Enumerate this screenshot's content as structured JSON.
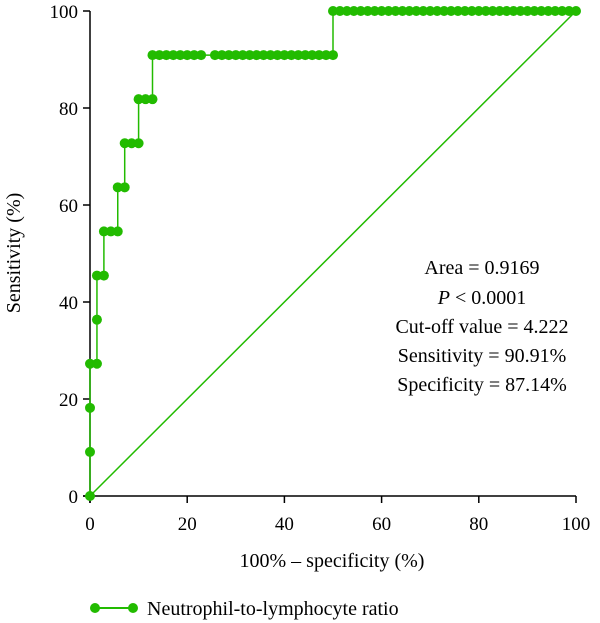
{
  "chart_data": {
    "type": "line",
    "title": "",
    "xlabel": "100% – specificity (%)",
    "ylabel": "Sensitivity (%)",
    "xlim": [
      0,
      100
    ],
    "ylim": [
      0,
      100
    ],
    "xticks": [
      0,
      20,
      40,
      60,
      80,
      100
    ],
    "yticks": [
      0,
      20,
      40,
      60,
      80,
      100
    ],
    "grid": false,
    "legend_position": "bottom",
    "series": [
      {
        "name": "Neutrophil-to-lymphocyte ratio",
        "color": "#22bb00",
        "marker": "circle",
        "x": [
          0,
          0,
          0,
          0,
          1.43,
          1.43,
          1.43,
          2.86,
          2.86,
          4.29,
          5.71,
          5.71,
          7.14,
          7.14,
          8.57,
          10.0,
          10.0,
          11.43,
          12.86,
          12.86,
          14.29,
          15.71,
          17.14,
          18.57,
          20.0,
          21.43,
          22.86,
          25.71,
          27.14,
          28.57,
          30.0,
          31.43,
          32.86,
          34.29,
          35.71,
          37.14,
          38.57,
          40.0,
          41.43,
          42.86,
          44.29,
          45.71,
          47.14,
          48.57,
          50.0,
          50.0,
          51.43,
          52.86,
          54.29,
          55.71,
          57.14,
          58.57,
          60.0,
          61.43,
          62.86,
          64.29,
          65.71,
          67.14,
          68.57,
          70.0,
          71.43,
          72.86,
          74.29,
          75.71,
          77.14,
          78.57,
          80.0,
          81.43,
          82.86,
          84.29,
          85.71,
          87.14,
          88.57,
          90.0,
          91.43,
          92.86,
          94.29,
          95.71,
          97.14,
          98.57,
          100.0
        ],
        "y": [
          0,
          9.09,
          18.18,
          27.27,
          27.27,
          36.36,
          45.45,
          45.45,
          54.55,
          54.55,
          54.55,
          63.64,
          63.64,
          72.73,
          72.73,
          72.73,
          81.82,
          81.82,
          81.82,
          90.91,
          90.91,
          90.91,
          90.91,
          90.91,
          90.91,
          90.91,
          90.91,
          90.91,
          90.91,
          90.91,
          90.91,
          90.91,
          90.91,
          90.91,
          90.91,
          90.91,
          90.91,
          90.91,
          90.91,
          90.91,
          90.91,
          90.91,
          90.91,
          90.91,
          90.91,
          100,
          100,
          100,
          100,
          100,
          100,
          100,
          100,
          100,
          100,
          100,
          100,
          100,
          100,
          100,
          100,
          100,
          100,
          100,
          100,
          100,
          100,
          100,
          100,
          100,
          100,
          100,
          100,
          100,
          100,
          100,
          100,
          100,
          100,
          100,
          100
        ]
      },
      {
        "name": "",
        "color": "#22bb00",
        "marker": "none",
        "x": [
          0,
          100
        ],
        "y": [
          0,
          100
        ]
      }
    ],
    "annotations": [
      "Area = 0.9169",
      "P < 0.0001",
      "Cut-off value = 4.222",
      "Sensitivity = 90.91%",
      "Specificity = 87.14%"
    ]
  }
}
